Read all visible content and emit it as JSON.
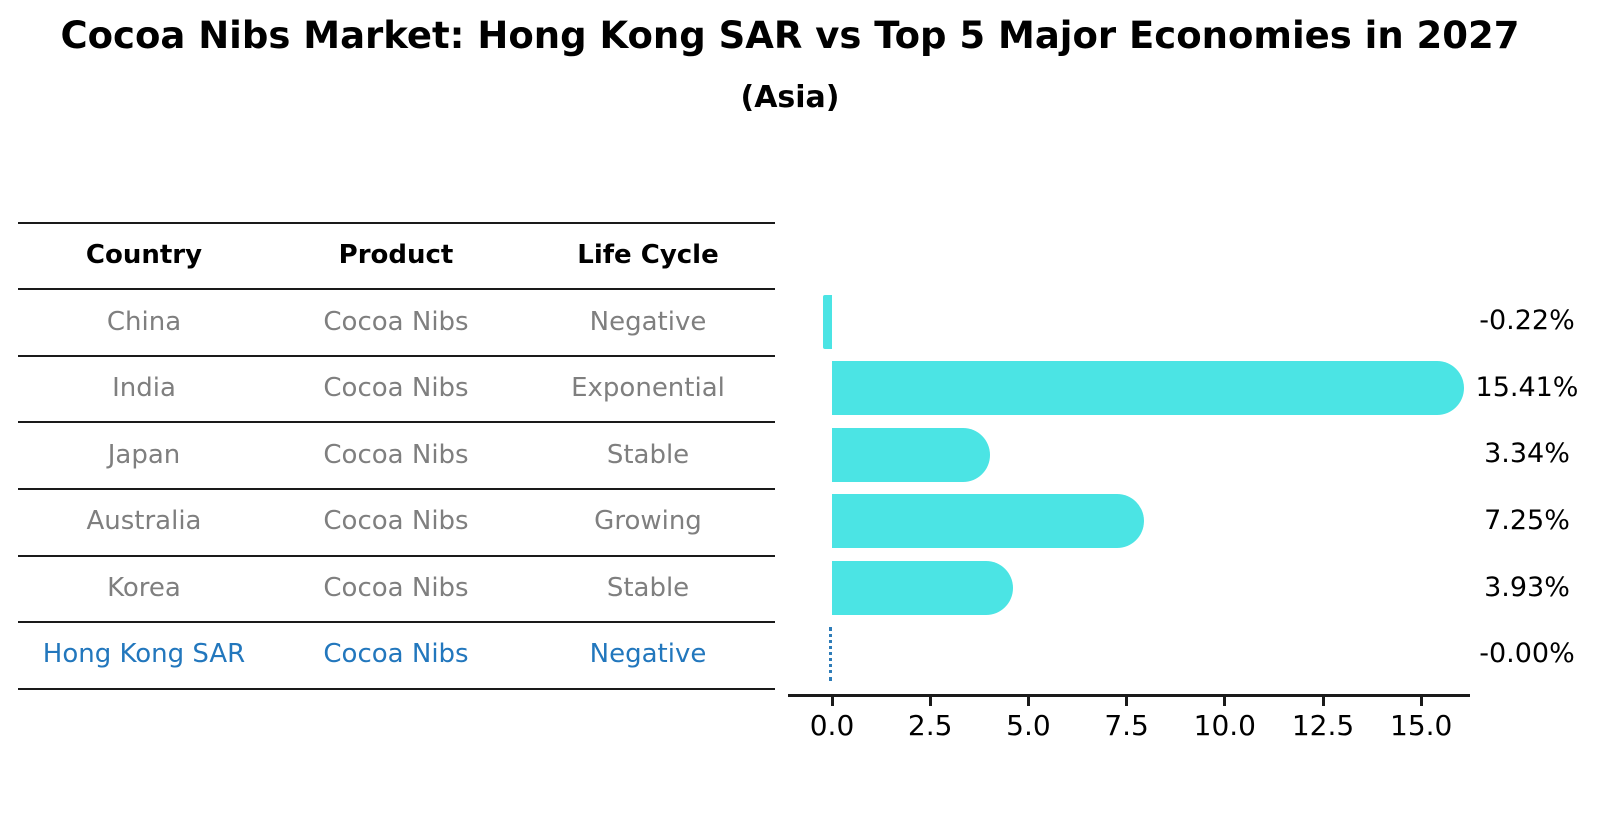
{
  "header": {
    "title": "Cocoa Nibs Market: Hong Kong SAR vs Top 5 Major Economies in 2027",
    "subtitle": "(Asia)"
  },
  "table": {
    "columns": [
      "Country",
      "Product",
      "Life Cycle"
    ],
    "rows": [
      {
        "country": "China",
        "product": "Cocoa Nibs",
        "life_cycle": "Negative",
        "highlight": false
      },
      {
        "country": "India",
        "product": "Cocoa Nibs",
        "life_cycle": "Exponential",
        "highlight": false
      },
      {
        "country": "Japan",
        "product": "Cocoa Nibs",
        "life_cycle": "Stable",
        "highlight": false
      },
      {
        "country": "Australia",
        "product": "Cocoa Nibs",
        "life_cycle": "Growing",
        "highlight": false
      },
      {
        "country": "Korea",
        "product": "Cocoa Nibs",
        "life_cycle": "Stable",
        "highlight": false
      },
      {
        "country": "Hong Kong SAR",
        "product": "Cocoa Nibs",
        "life_cycle": "Negative",
        "highlight": true
      }
    ]
  },
  "chart_data": {
    "type": "bar",
    "orientation": "horizontal",
    "title": "Cocoa Nibs Market: Hong Kong SAR vs Top 5 Major Economies in 2027",
    "subtitle": "(Asia)",
    "categories": [
      "China",
      "India",
      "Japan",
      "Australia",
      "Korea",
      "Hong Kong SAR"
    ],
    "values": [
      -0.22,
      15.41,
      3.34,
      7.25,
      3.93,
      -0.0
    ],
    "labels": [
      "-0.22%",
      "15.41%",
      "3.34%",
      "7.25%",
      "3.93%",
      "-0.00%"
    ],
    "x_ticks": [
      "0.0",
      "2.5",
      "5.0",
      "7.5",
      "10.0",
      "12.5",
      "15.0"
    ],
    "x_tick_values": [
      0,
      2.5,
      5,
      7.5,
      10,
      12.5,
      15
    ],
    "xlim": [
      -1.1,
      16.2
    ],
    "grid": false,
    "legend": false,
    "highlight_index": 5,
    "bar_color": "#4be4e4",
    "marker_color": "#2e7cb8",
    "highlight_text_color": "#2277bd",
    "axis_color": "#1a1a1a",
    "row_text_color": "#7f7f7f"
  }
}
